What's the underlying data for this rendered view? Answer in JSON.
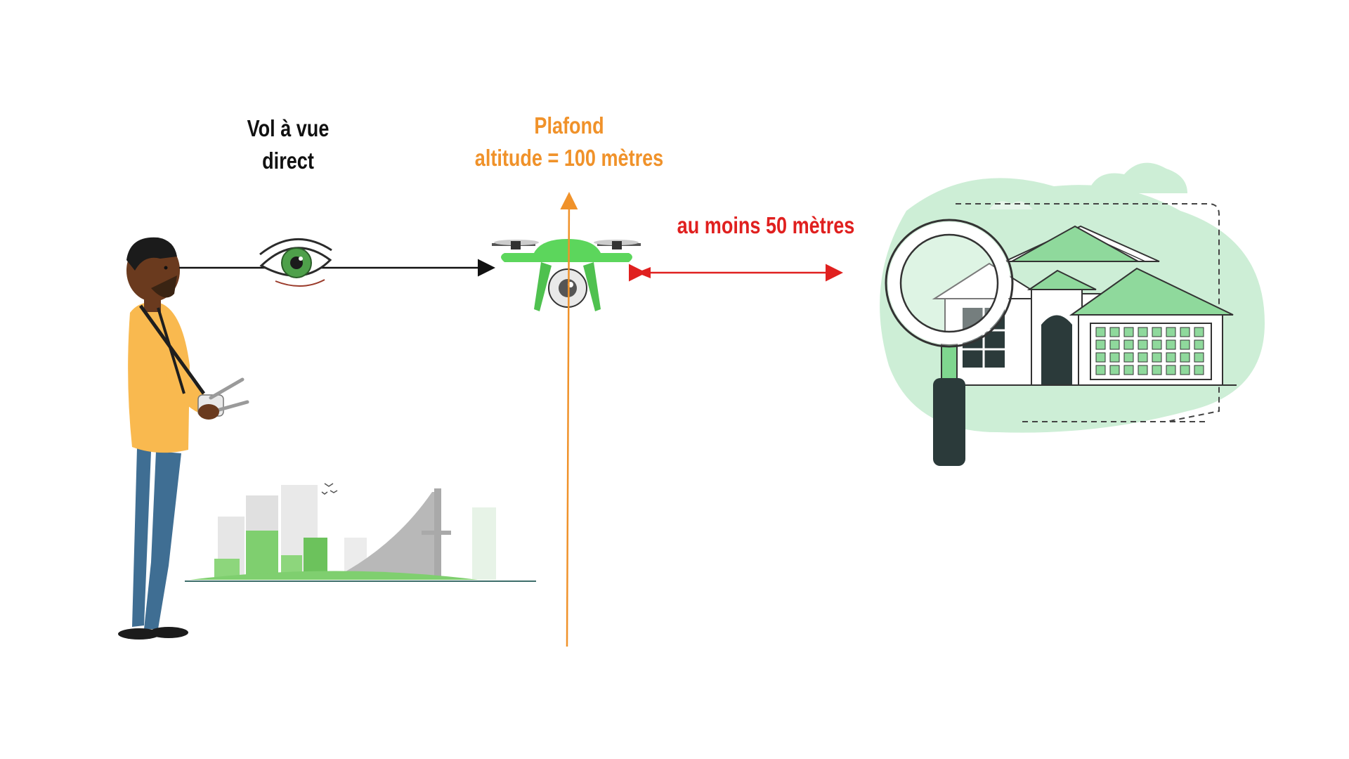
{
  "labels": {
    "visual_line_1": "Vol à vue",
    "visual_line_2": "direct",
    "ceiling_line_1": "Plafond",
    "ceiling_line_2": "altitude = 100 mètres",
    "distance": "au moins 50 mètres"
  },
  "colors": {
    "black_arrow": "#111111",
    "ceiling_orange": "#f0922a",
    "distance_red": "#e0201f",
    "drone_green": "#5cd65c",
    "house_green": "#7fd68f",
    "background_blob": "#cdeed6"
  },
  "icons": [
    "pilot-figure",
    "eye-icon",
    "drone-icon",
    "city-skyline",
    "house-icon",
    "magnifier-icon"
  ]
}
